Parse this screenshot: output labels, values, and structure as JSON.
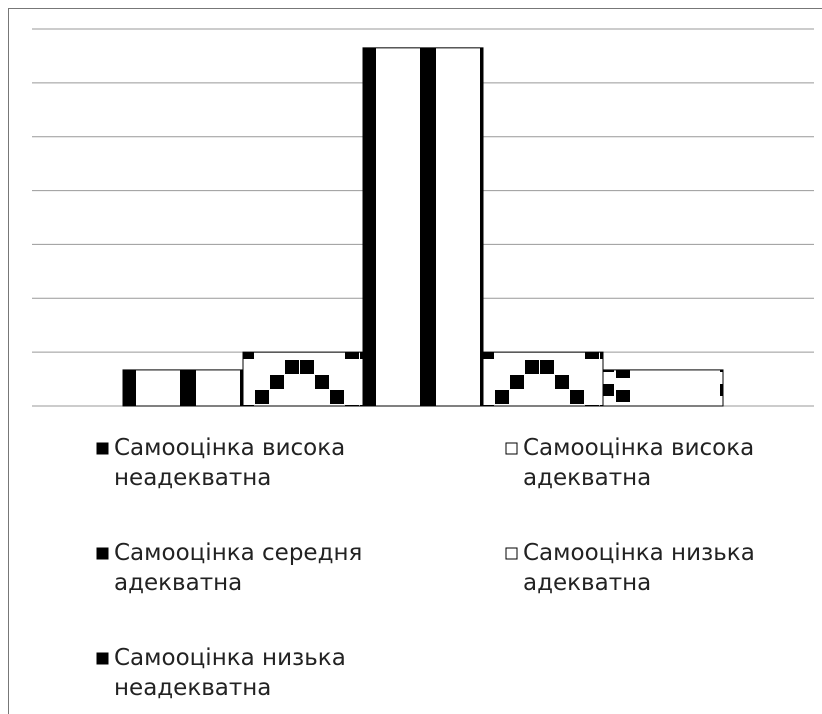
{
  "chart_data": {
    "type": "bar",
    "categories": [
      null
    ],
    "series": [
      {
        "name": "Самооцінка висока неадекватна",
        "color": "#000000",
        "values": [
          0.67
        ]
      },
      {
        "name": "Самооцінка висока адекватна",
        "color": "#000000",
        "values": [
          1
        ]
      },
      {
        "name": "Самооцінка середня адекватна",
        "color": "#000000",
        "values": [
          6.65
        ]
      },
      {
        "name": "Самооцінка низька адекватна",
        "color": "#000000",
        "values": [
          1
        ]
      },
      {
        "name": "Самооцінка низька неадекватна",
        "color": "#000000",
        "values": [
          0.67
        ]
      }
    ],
    "ylim": [
      0,
      7
    ],
    "yticks": [
      0,
      1,
      2,
      3,
      4,
      5,
      6,
      7
    ],
    "grid": true
  }
}
